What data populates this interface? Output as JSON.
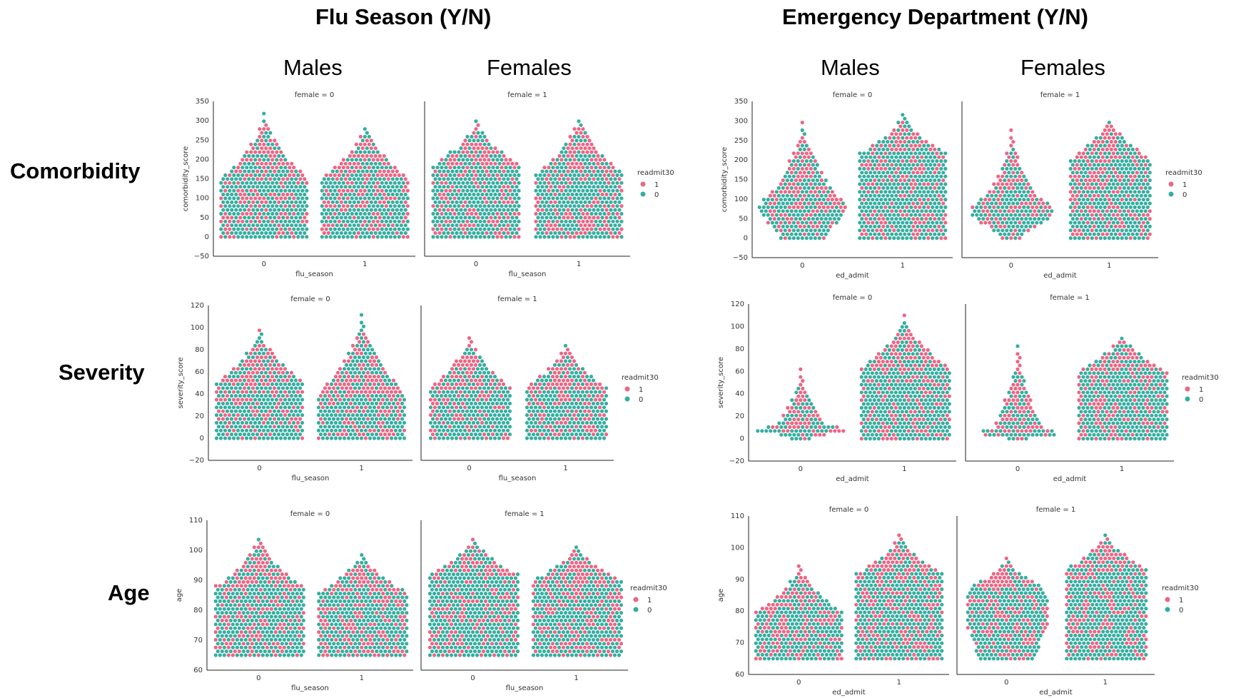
{
  "headings": {
    "flu": "Flu Season (Y/N)",
    "ed": "Emergency Department (Y/N)",
    "males": "Males",
    "females": "Females",
    "comorbidity": "Comorbidity",
    "severity": "Severity",
    "age": "Age"
  },
  "colors": {
    "readmit_1": "#ee6583",
    "readmit_0": "#35aea0"
  },
  "chart_data": [
    {
      "type": "scatter",
      "subtype": "swarm",
      "title": "female = 0",
      "xlabel": "flu_season",
      "ylabel": "comorbidity_score",
      "categories": [
        "0",
        "1"
      ],
      "ylim": [
        -50,
        350
      ],
      "yticks": [
        "350",
        "300",
        "250",
        "200",
        "150",
        "100",
        "50",
        "0",
        "−50"
      ],
      "legend": {
        "title": "readmit30",
        "entries": [
          "1",
          "0"
        ],
        "placement": "right"
      },
      "series": [
        {
          "name": "1",
          "values": [
            0,
            320
          ]
        },
        {
          "name": "0",
          "values": [
            0,
            260
          ]
        }
      ]
    },
    {
      "type": "scatter",
      "subtype": "swarm",
      "title": "female = 1",
      "xlabel": "flu_season",
      "ylabel": "",
      "categories": [
        "0",
        "1"
      ],
      "ylim": [
        -50,
        350
      ],
      "yticks": [],
      "legend": {
        "title": "readmit30",
        "entries": [
          "1",
          "0"
        ],
        "placement": "right"
      },
      "series": [
        {
          "name": "1",
          "values": [
            0,
            315
          ]
        },
        {
          "name": "0",
          "values": [
            0,
            260
          ]
        }
      ]
    },
    {
      "type": "scatter",
      "subtype": "swarm",
      "title": "female = 0",
      "xlabel": "ed_admit",
      "ylabel": "comorbidity_score",
      "categories": [
        "0",
        "1"
      ],
      "ylim": [
        -50,
        350
      ],
      "yticks": [
        "350",
        "300",
        "250",
        "200",
        "150",
        "100",
        "50",
        "0",
        "−50"
      ],
      "legend": {
        "title": "readmit30",
        "entries": [
          "1",
          "0"
        ],
        "placement": "right"
      },
      "series": [
        {
          "name": "1",
          "values": [
            0,
            320
          ]
        },
        {
          "name": "0",
          "values": [
            0,
            285
          ]
        }
      ]
    },
    {
      "type": "scatter",
      "subtype": "swarm",
      "title": "female = 1",
      "xlabel": "ed_admit",
      "ylabel": "",
      "categories": [
        "0",
        "1"
      ],
      "ylim": [
        -50,
        350
      ],
      "yticks": [],
      "legend": {
        "title": "readmit30",
        "entries": [
          "1",
          "0"
        ],
        "placement": "right"
      },
      "series": [
        {
          "name": "1",
          "values": [
            0,
            315
          ]
        },
        {
          "name": "0",
          "values": [
            0,
            280
          ]
        }
      ]
    },
    {
      "type": "scatter",
      "subtype": "swarm",
      "title": "female = 0",
      "xlabel": "flu_season",
      "ylabel": "severity_score",
      "categories": [
        "0",
        "1"
      ],
      "ylim": [
        -20,
        120
      ],
      "yticks": [
        "120",
        "100",
        "80",
        "60",
        "40",
        "20",
        "0",
        "−20"
      ],
      "legend": {
        "title": "readmit30",
        "entries": [
          "1",
          "0"
        ],
        "placement": "right"
      },
      "series": [
        {
          "name": "1",
          "values": [
            0,
            112
          ]
        },
        {
          "name": "0",
          "values": [
            0,
            85
          ]
        }
      ]
    },
    {
      "type": "scatter",
      "subtype": "swarm",
      "title": "female = 1",
      "xlabel": "flu_season",
      "ylabel": "",
      "categories": [
        "0",
        "1"
      ],
      "ylim": [
        -20,
        120
      ],
      "yticks": [],
      "legend": {
        "title": "readmit30",
        "entries": [
          "1",
          "0"
        ],
        "placement": "right"
      },
      "series": [
        {
          "name": "1",
          "values": [
            0,
            95
          ]
        },
        {
          "name": "0",
          "values": [
            0,
            85
          ]
        }
      ]
    },
    {
      "type": "scatter",
      "subtype": "swarm",
      "title": "female = 0",
      "xlabel": "ed_admit",
      "ylabel": "severity_score",
      "categories": [
        "0",
        "1"
      ],
      "ylim": [
        -20,
        120
      ],
      "yticks": [
        "120",
        "100",
        "80",
        "60",
        "40",
        "20",
        "0",
        "−20"
      ],
      "legend": {
        "title": "readmit30",
        "entries": [
          "1",
          "0"
        ],
        "placement": "right"
      },
      "series": [
        {
          "name": "1",
          "values": [
            0,
            112
          ]
        },
        {
          "name": "0",
          "values": [
            0,
            65
          ]
        }
      ]
    },
    {
      "type": "scatter",
      "subtype": "swarm",
      "title": "female = 1",
      "xlabel": "ed_admit",
      "ylabel": "",
      "categories": [
        "0",
        "1"
      ],
      "ylim": [
        -20,
        120
      ],
      "yticks": [],
      "legend": {
        "title": "readmit30",
        "entries": [
          "1",
          "0"
        ],
        "placement": "right"
      },
      "series": [
        {
          "name": "1",
          "values": [
            0,
            95
          ]
        },
        {
          "name": "0",
          "values": [
            0,
            85
          ]
        }
      ]
    },
    {
      "type": "scatter",
      "subtype": "swarm",
      "title": "female = 0",
      "xlabel": "flu_season",
      "ylabel": "age",
      "categories": [
        "0",
        "1"
      ],
      "ylim": [
        60,
        110
      ],
      "yticks": [
        "110",
        "100",
        "90",
        "80",
        "70",
        "60"
      ],
      "legend": {
        "title": "readmit30",
        "entries": [
          "1",
          "0"
        ],
        "placement": "right"
      },
      "series": [
        {
          "name": "1",
          "values": [
            65,
            105
          ]
        },
        {
          "name": "0",
          "values": [
            65,
            105
          ]
        }
      ]
    },
    {
      "type": "scatter",
      "subtype": "swarm",
      "title": "female = 1",
      "xlabel": "flu_season",
      "ylabel": "",
      "categories": [
        "0",
        "1"
      ],
      "ylim": [
        60,
        110
      ],
      "yticks": [],
      "legend": {
        "title": "readmit30",
        "entries": [
          "1",
          "0"
        ],
        "placement": "right"
      },
      "series": [
        {
          "name": "1",
          "values": [
            65,
            105
          ]
        },
        {
          "name": "0",
          "values": [
            65,
            105
          ]
        }
      ]
    },
    {
      "type": "scatter",
      "subtype": "swarm",
      "title": "female = 0",
      "xlabel": "ed_admit",
      "ylabel": "age",
      "categories": [
        "0",
        "1"
      ],
      "ylim": [
        60,
        110
      ],
      "yticks": [
        "110",
        "100",
        "90",
        "80",
        "70",
        "60"
      ],
      "legend": {
        "title": "readmit30",
        "entries": [
          "1",
          "0"
        ],
        "placement": "right"
      },
      "series": [
        {
          "name": "1",
          "values": [
            65,
            105
          ]
        },
        {
          "name": "0",
          "values": [
            65,
            105
          ]
        }
      ]
    },
    {
      "type": "scatter",
      "subtype": "swarm",
      "title": "female = 1",
      "xlabel": "ed_admit",
      "ylabel": "",
      "categories": [
        "0",
        "1"
      ],
      "ylim": [
        60,
        110
      ],
      "yticks": [],
      "legend": {
        "title": "readmit30",
        "entries": [
          "1",
          "0"
        ],
        "placement": "right"
      },
      "series": [
        {
          "name": "1",
          "values": [
            65,
            105
          ]
        },
        {
          "name": "0",
          "values": [
            65,
            105
          ]
        }
      ]
    }
  ]
}
